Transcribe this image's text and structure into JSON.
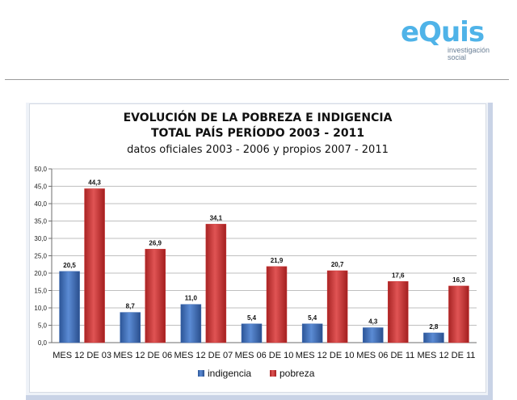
{
  "logo": {
    "word": "eQuis",
    "sub1": "investigación",
    "sub2": "social"
  },
  "colors": {
    "indigencia": "#3b69b3",
    "pobreza": "#cd3434",
    "logo": "#4fb3e8"
  },
  "chart_data": {
    "type": "bar",
    "title_lines": [
      "EVOLUCIÓN DE LA POBREZA E INDIGENCIA",
      "TOTAL PAÍS PERÍODO 2003 - 2011",
      "datos oficiales 2003 - 2006 y propios 2007 - 2011"
    ],
    "categories": [
      "MES 12 DE 03",
      "MES 12 DE 06",
      "MES 12 DE 07",
      "MES 06 DE 10",
      "MES 12 DE 10",
      "MES 06 DE 11",
      "MES 12 DE 11"
    ],
    "series": [
      {
        "name": "indigencia",
        "values": [
          20.5,
          8.7,
          11.0,
          5.4,
          5.4,
          4.3,
          2.8
        ],
        "labels": [
          "20,5",
          "8,7",
          "11,0",
          "5,4",
          "5,4",
          "4,3",
          "2,8"
        ]
      },
      {
        "name": "pobreza",
        "values": [
          44.3,
          26.9,
          34.1,
          21.9,
          20.7,
          17.6,
          16.3
        ],
        "labels": [
          "44,3",
          "26,9",
          "34,1",
          "21,9",
          "20,7",
          "17,6",
          "16,3"
        ]
      }
    ],
    "ylim": [
      0,
      50
    ],
    "yticks": [
      0,
      5,
      10,
      15,
      20,
      25,
      30,
      35,
      40,
      45,
      50
    ],
    "ytick_labels": [
      "0,0",
      "5,0",
      "10,0",
      "15,0",
      "20,0",
      "25,0",
      "30,0",
      "35,0",
      "40,0",
      "45,0",
      "50,0"
    ],
    "grid": true,
    "legend": "bottom"
  }
}
